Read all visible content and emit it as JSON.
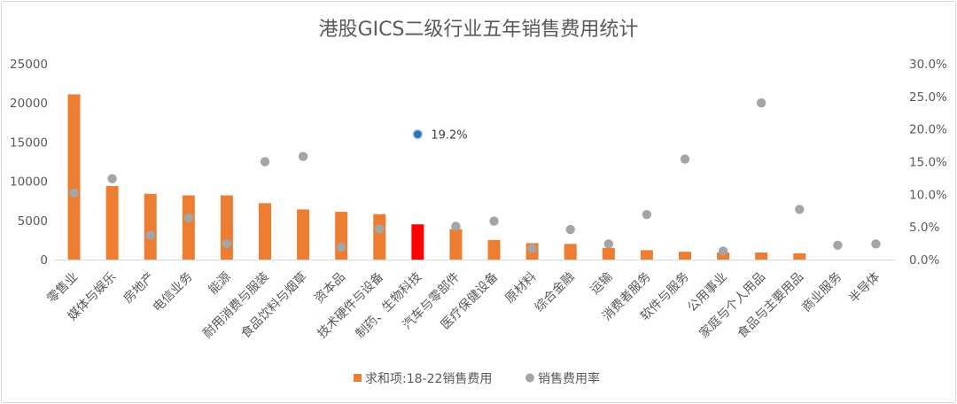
{
  "chart_data": {
    "type": "bar",
    "title": "港股GICS二级行业五年销售费用统计",
    "categories": [
      "零售业",
      "媒体与娱乐",
      "房地产",
      "电信业务",
      "能源",
      "耐用消费与服装",
      "食品饮料与烟草",
      "资本品",
      "技术硬件与设备",
      "制药、生物科技",
      "汽车与零部件",
      "医疗保健设备",
      "原材料",
      "综合金融",
      "运输",
      "消费者服务",
      "软件与服务",
      "公用事业",
      "家庭与个人用品",
      "食品与主要用品",
      "商业服务",
      "半导体"
    ],
    "series": [
      {
        "name": "求和项:18-22销售费用",
        "type": "bar",
        "axis": "left",
        "color": "#ED7D31",
        "highlight": {
          "index": 9,
          "color": "#FF0000"
        },
        "values": [
          21100,
          9400,
          8400,
          8200,
          8200,
          7200,
          6400,
          6100,
          5800,
          4500,
          3900,
          2500,
          2100,
          2000,
          1500,
          1200,
          1000,
          900,
          900,
          800,
          0,
          0
        ]
      },
      {
        "name": "销售费用率",
        "type": "scatter",
        "axis": "right",
        "color": "#A5A5A5",
        "highlight": {
          "index": 9,
          "color": "#2E75B6"
        },
        "values": [
          0.102,
          0.124,
          0.037,
          0.064,
          0.024,
          0.15,
          0.158,
          0.019,
          0.047,
          0.192,
          0.051,
          0.059,
          0.017,
          0.046,
          0.024,
          0.069,
          0.154,
          0.013,
          0.24,
          0.077,
          0.022,
          0.024
        ]
      }
    ],
    "annotation": {
      "index": 9,
      "text": "19.2%"
    },
    "y_left": {
      "min": 0,
      "max": 25000,
      "step": 5000,
      "ticks": [
        "0",
        "5000",
        "10000",
        "15000",
        "20000",
        "25000"
      ]
    },
    "y_right": {
      "min": 0,
      "max": 0.3,
      "step": 0.05,
      "ticks": [
        "0.0%",
        "5.0%",
        "10.0%",
        "15.0%",
        "20.0%",
        "25.0%",
        "30.0%"
      ]
    },
    "grid": false,
    "legend_position": "bottom"
  }
}
